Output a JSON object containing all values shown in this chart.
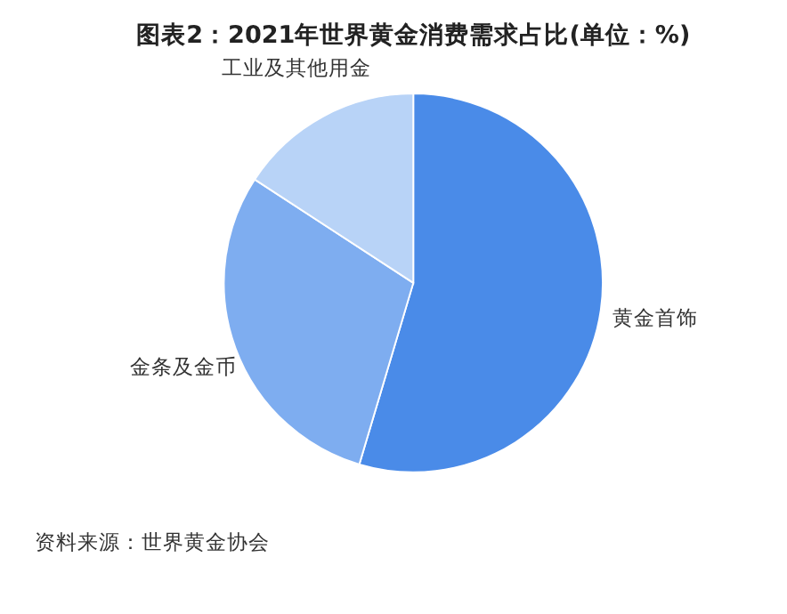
{
  "chart_data": {
    "type": "pie",
    "title": "图表2：2021年世界黄金消费需求占比(单位：%)",
    "categories": [
      "黄金首饰",
      "金条及金币",
      "工业及其他用金"
    ],
    "values": [
      54.6,
      29.6,
      15.8
    ],
    "colors": [
      "#4a8be8",
      "#7eadf0",
      "#b8d3f7"
    ],
    "annotations": [
      "资料来源：世界黄金协会"
    ],
    "legend": false
  }
}
